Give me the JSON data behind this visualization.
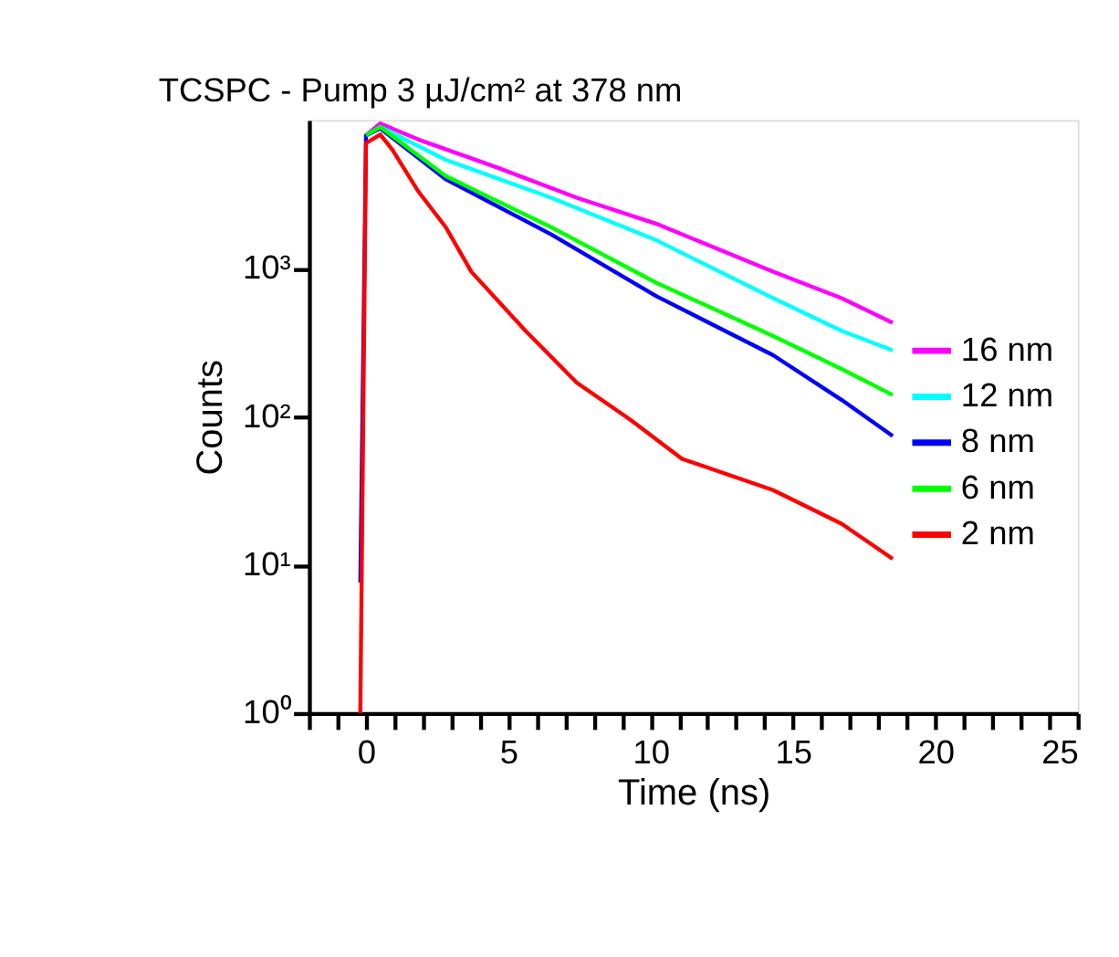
{
  "chart_data": {
    "type": "line",
    "title": "TCSPC - Pump 3 µJ/cm² at 378 nm",
    "xlabel": "Time (ns)",
    "ylabel": "Counts",
    "log": "y",
    "grid": false,
    "legend": "right",
    "line_style": "solid",
    "marker": "none",
    "xlim": [
      -2,
      25
    ],
    "xticks": [
      {
        "value": -2,
        "label": null
      },
      {
        "value": -1,
        "label": null
      },
      0,
      {
        "value": 1,
        "label": null
      },
      {
        "value": 2,
        "label": null
      },
      {
        "value": 3,
        "label": null
      },
      {
        "value": 4,
        "label": null
      },
      5,
      {
        "value": 6,
        "label": null
      },
      {
        "value": 7,
        "label": null
      },
      {
        "value": 8,
        "label": null
      },
      {
        "value": 9,
        "label": null
      },
      10,
      {
        "value": 11,
        "label": null
      },
      {
        "value": 12,
        "label": null
      },
      {
        "value": 13,
        "label": null
      },
      {
        "value": 14,
        "label": null
      },
      15,
      {
        "value": 16,
        "label": null
      },
      {
        "value": 17,
        "label": null
      },
      {
        "value": 18,
        "label": null
      },
      {
        "value": 19,
        "label": null
      },
      20,
      {
        "value": 21,
        "label": null
      },
      {
        "value": 22,
        "label": null
      },
      {
        "value": 23,
        "label": null
      },
      {
        "value": 24,
        "label": null
      },
      25
    ],
    "ylim": [
      1,
      10000
    ],
    "yticks": [
      {
        "value": 1,
        "label": "10⁰"
      },
      {
        "value": 10,
        "label": "10¹"
      },
      {
        "value": 100,
        "label": "10²"
      },
      {
        "value": 1000,
        "label": "10³"
      }
    ],
    "series": [
      {
        "name": "16 nm",
        "color": "#ff00ff",
        "x": [
          0,
          0.5,
          1.84,
          4.6,
          7.4,
          10.2,
          14.3,
          16.7,
          18.5
        ],
        "values": [
          7900,
          9500,
          7400,
          4800,
          3000,
          2000,
          950,
          630,
          430
        ]
      },
      {
        "name": "12 nm",
        "color": "#00ffff",
        "x": [
          0,
          0.5,
          2.8,
          6.5,
          10.2,
          14.3,
          16.7,
          18.5
        ],
        "values": [
          7900,
          9000,
          5400,
          3000,
          1550,
          630,
          380,
          280
        ]
      },
      {
        "name": "8 nm",
        "color": "#0000ff",
        "x": [
          -0.2,
          0,
          0.5,
          2.8,
          6.5,
          10.2,
          14.3,
          16.7,
          18.5
        ],
        "values": [
          7.6,
          7900,
          8800,
          4000,
          1700,
          650,
          260,
          130,
          74
        ]
      },
      {
        "name": "6 nm",
        "color": "#00ff00",
        "x": [
          0,
          0.5,
          2.8,
          6.5,
          10.2,
          14.3,
          16.7,
          18.5
        ],
        "values": [
          7900,
          9000,
          4200,
          1900,
          800,
          350,
          210,
          140
        ]
      },
      {
        "name": "2 nm",
        "color": "#ff0000",
        "x": [
          -0.2,
          0,
          0.5,
          0.93,
          1.84,
          2.8,
          3.7,
          5.6,
          7.4,
          9.3,
          11.1,
          14.3,
          16.7,
          18.5
        ],
        "values": [
          1,
          7000,
          8000,
          6300,
          3300,
          1900,
          950,
          380,
          170,
          95,
          52,
          32,
          19,
          11
        ]
      }
    ]
  }
}
